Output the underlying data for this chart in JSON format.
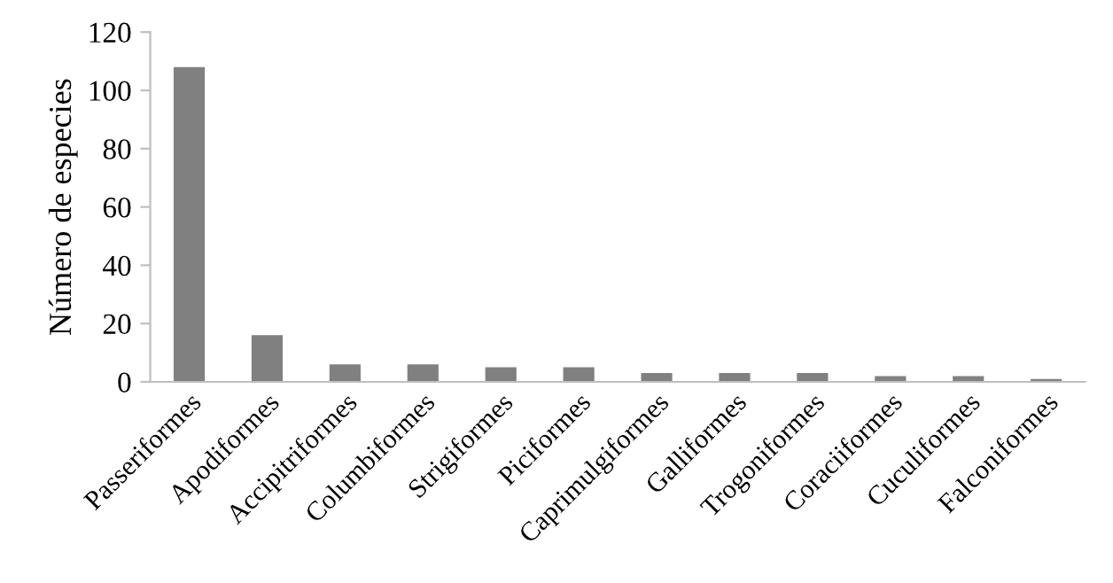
{
  "chart_data": {
    "type": "bar",
    "ylabel": "Número de especies",
    "categories": [
      "Passeriformes",
      "Apodiformes",
      "Accipitriformes",
      "Columbiformes",
      "Strigiformes",
      "Piciformes",
      "Caprimulgiformes",
      "Galliformes",
      "Trogoniformes",
      "Coraciiformes",
      "Cuculiformes",
      "Falconiformes"
    ],
    "values": [
      108,
      16,
      6,
      6,
      5,
      5,
      3,
      3,
      3,
      2,
      2,
      1
    ],
    "color": "#808080",
    "ylim": [
      0,
      120
    ],
    "yticks": [
      0,
      20,
      40,
      60,
      80,
      100,
      120
    ],
    "grid": false,
    "legend": false
  }
}
